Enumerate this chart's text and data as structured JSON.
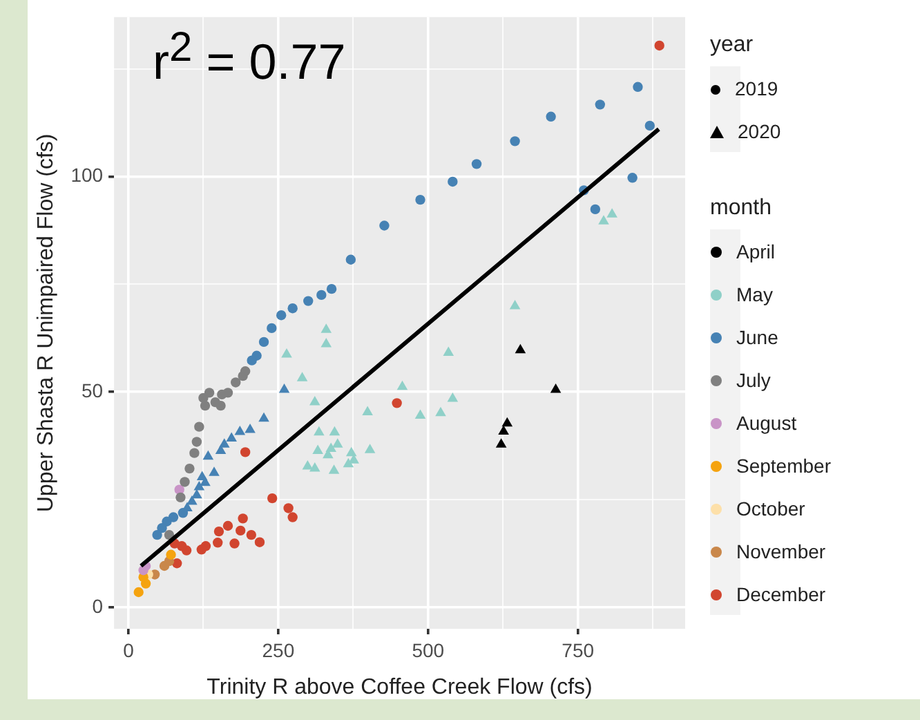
{
  "chart_data": {
    "type": "scatter",
    "xlabel": "Trinity R above Coffee Creek Flow (cfs)",
    "ylabel": "Upper Shasta R Unimpaired Flow (cfs)",
    "legend_title": "month",
    "legend": "right",
    "grid": true,
    "xlim": [
      -24,
      929
    ],
    "ylim": [
      -5,
      137
    ],
    "xticks": [
      0,
      {
        "value": 125,
        "label": null
      },
      250,
      {
        "value": 375,
        "label": null
      },
      500,
      {
        "value": 625,
        "label": null
      },
      750,
      {
        "value": 875,
        "label": null
      }
    ],
    "yticks": [
      0,
      {
        "value": 25,
        "label": null
      },
      50,
      {
        "value": 75,
        "label": null
      },
      100,
      {
        "value": 125,
        "label": null
      }
    ],
    "annotations": [
      "r$^{2}$ = 0.77",
      "year",
      "2019",
      "2020"
    ],
    "series": [
      {
        "name": "April",
        "color": "#000000",
        "marker": "triangle",
        "x": [
          654,
          713,
          632,
          626,
          622
        ],
        "values": [
          59.7,
          50.5,
          42.7,
          40.8,
          37.8
        ]
      },
      {
        "name": "May",
        "color": "#8fd0c8",
        "marker": "triangle",
        "x": [
          793,
          807,
          645,
          534,
          541,
          521,
          487,
          330,
          330,
          264,
          290,
          311,
          399,
          457,
          318,
          344,
          316,
          338,
          333,
          299,
          311,
          343,
          372,
          376,
          367,
          403,
          349
        ],
        "values": [
          89.6,
          91.2,
          69.9,
          59.1,
          48.4,
          45.1,
          44.5,
          64.4,
          61.1,
          58.7,
          53.2,
          47.6,
          45.3,
          51.2,
          40.6,
          40.6,
          36.3,
          36.8,
          35.3,
          32.7,
          32.2,
          31.7,
          35.8,
          34.1,
          33.2,
          36.5,
          37.8
        ]
      },
      {
        "name": "June",
        "color": "#4682b4",
        "marker": "circle",
        "x": [
          487,
          427,
          371,
          339,
          322,
          300,
          274,
          255,
          239,
          226,
          214,
          206,
          541,
          581,
          645,
          705,
          787,
          850,
          870,
          841,
          779,
          760,
          91,
          75,
          64,
          56,
          48
        ],
        "values": [
          94.6,
          88.6,
          80.7,
          73.9,
          72.5,
          71.1,
          69.4,
          67.8,
          64.8,
          61.6,
          58.4,
          57.3,
          98.8,
          102.9,
          108.2,
          113.9,
          116.7,
          120.8,
          111.8,
          99.7,
          92.4,
          96.8,
          21.9,
          20.9,
          19.9,
          18.4,
          16.8
        ]
      },
      {
        "color": "#4682b4",
        "marker": "triangle",
        "x": [
          260,
          226,
          203,
          186,
          172,
          160,
          154,
          133,
          143,
          123,
          128,
          118,
          114,
          106,
          98
        ],
        "values": [
          50.5,
          43.8,
          41.2,
          40.7,
          39.2,
          37.8,
          36.3,
          35.0,
          31.2,
          30.2,
          28.9,
          27.9,
          26.0,
          24.5,
          23.0
        ]
      },
      {
        "name": "July",
        "color": "#808080",
        "marker": "circle",
        "x": [
          195,
          191,
          179,
          166,
          156,
          135,
          125,
          128,
          145,
          154,
          118,
          114,
          110,
          102,
          94,
          87,
          68
        ],
        "values": [
          54.8,
          53.7,
          52.2,
          49.8,
          49.4,
          49.8,
          48.6,
          46.8,
          47.6,
          46.8,
          41.9,
          38.4,
          35.8,
          32.2,
          29.1,
          25.5,
          16.8
        ]
      },
      {
        "name": "August",
        "color": "#c994c7",
        "marker": "circle",
        "x": [
          85,
          25,
          29
        ],
        "values": [
          27.3,
          8.6,
          9.6
        ]
      },
      {
        "name": "September",
        "color": "#f5a30f",
        "marker": "circle",
        "x": [
          71,
          17,
          29,
          25
        ],
        "values": [
          12.2,
          3.5,
          5.5,
          7
        ]
      },
      {
        "name": "October",
        "color": "#fde0a9",
        "marker": "circle",
        "x": [
          33
        ],
        "values": [
          7.6
        ]
      },
      {
        "name": "November",
        "color": "#c9874a",
        "marker": "circle",
        "x": [
          60,
          44,
          68
        ],
        "values": [
          9.6,
          7.6,
          10.7
        ]
      },
      {
        "name": "December",
        "color": "#d1452f",
        "marker": "circle",
        "x": [
          195,
          240,
          267,
          274,
          448,
          191,
          166,
          151,
          187,
          205,
          219,
          177,
          149,
          129,
          122,
          97,
          81,
          89,
          77,
          886
        ],
        "values": [
          36.0,
          25.3,
          23.0,
          20.9,
          47.4,
          20.6,
          18.9,
          17.6,
          17.8,
          16.8,
          15.1,
          14.8,
          15.0,
          14.2,
          13.4,
          13.2,
          10.2,
          14.2,
          14.8,
          130.4
        ]
      },
      {
        "type": "line",
        "color": "#000000",
        "marker": "none",
        "x": [
          21,
          885
        ],
        "values": [
          9.6,
          111.0
        ]
      }
    ]
  }
}
